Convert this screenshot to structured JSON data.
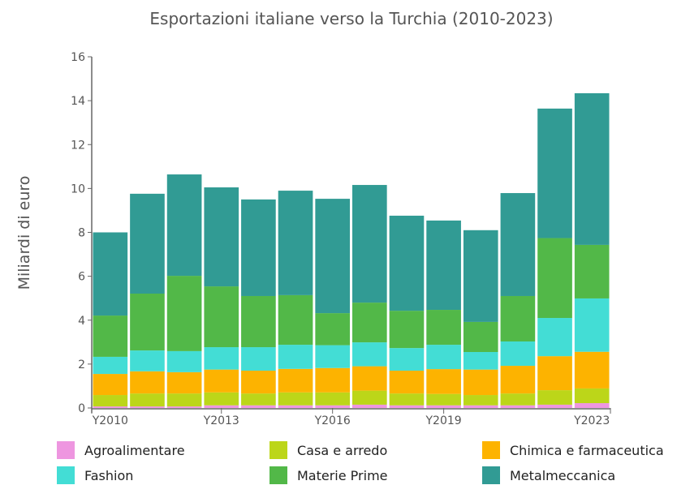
{
  "chart_data": {
    "type": "bar",
    "stacked": true,
    "title": "Esportazioni italiane verso la Turchia (2010-2023)",
    "xlabel": "",
    "ylabel": "Miliardi di euro",
    "ylim": [
      0,
      16
    ],
    "yticks": [
      0,
      2,
      4,
      6,
      8,
      10,
      12,
      14,
      16
    ],
    "categories": [
      "Y2010",
      "Y2011",
      "Y2012",
      "Y2013",
      "Y2014",
      "Y2015",
      "Y2016",
      "Y2017",
      "Y2018",
      "Y2019",
      "Y2020",
      "Y2021",
      "Y2022",
      "Y2023"
    ],
    "xtick_labels": [
      "Y2010",
      "Y2013",
      "Y2016",
      "Y2019",
      "Y2023"
    ],
    "legend_position": "bottom",
    "series": [
      {
        "name": "Agroalimentare",
        "color": "#ee96e0",
        "values": [
          0.07,
          0.07,
          0.07,
          0.12,
          0.12,
          0.12,
          0.12,
          0.15,
          0.12,
          0.12,
          0.12,
          0.12,
          0.15,
          0.22
        ]
      },
      {
        "name": "Casa e arredo",
        "color": "#bcd619",
        "values": [
          0.52,
          0.59,
          0.59,
          0.59,
          0.54,
          0.59,
          0.59,
          0.64,
          0.54,
          0.52,
          0.47,
          0.54,
          0.66,
          0.67
        ]
      },
      {
        "name": "Chimica e farmaceutica",
        "color": "#fdb300",
        "values": [
          0.96,
          1.01,
          0.97,
          1.04,
          1.04,
          1.07,
          1.11,
          1.11,
          1.04,
          1.13,
          1.16,
          1.26,
          1.55,
          1.67
        ]
      },
      {
        "name": "Fashion",
        "color": "#43ddd5",
        "values": [
          0.78,
          0.95,
          0.96,
          1.02,
          1.07,
          1.1,
          1.04,
          1.09,
          1.03,
          1.11,
          0.8,
          1.11,
          1.74,
          2.43
        ]
      },
      {
        "name": "Materie Prime",
        "color": "#52b848",
        "values": [
          1.88,
          2.59,
          3.43,
          2.77,
          2.33,
          2.26,
          1.46,
          1.81,
          1.7,
          1.59,
          1.37,
          2.07,
          3.64,
          2.44
        ]
      },
      {
        "name": "Metalmeccanica",
        "color": "#319b94",
        "values": [
          3.79,
          4.55,
          4.62,
          4.51,
          4.4,
          4.76,
          5.21,
          5.36,
          4.33,
          4.07,
          4.18,
          4.69,
          5.9,
          6.91
        ]
      }
    ]
  }
}
